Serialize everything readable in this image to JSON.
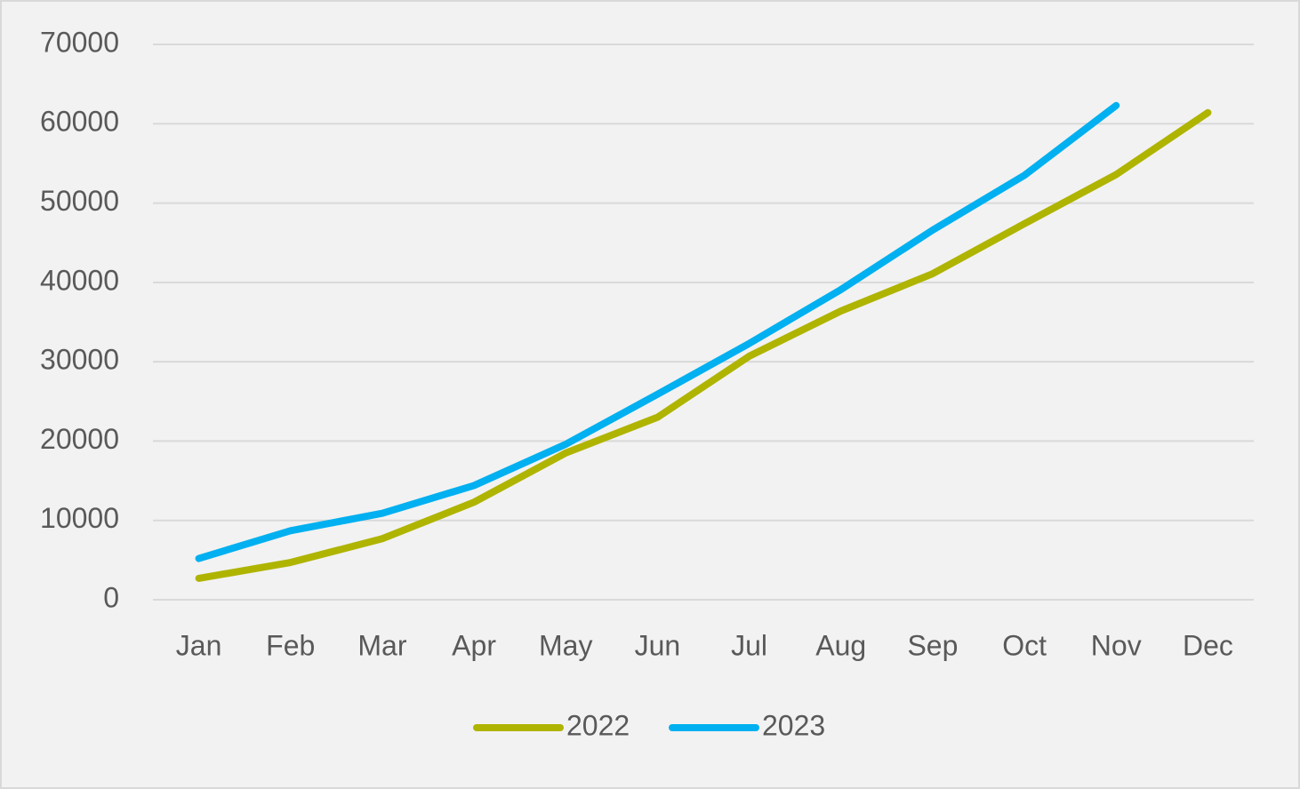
{
  "chart_data": {
    "type": "line",
    "categories": [
      "Jan",
      "Feb",
      "Mar",
      "Apr",
      "May",
      "Jun",
      "Jul",
      "Aug",
      "Sep",
      "Oct",
      "Nov",
      "Dec"
    ],
    "series": [
      {
        "name": "2022",
        "color": "#afb400",
        "values": [
          2700,
          4700,
          7700,
          12300,
          18500,
          23000,
          30700,
          36400,
          41100,
          47400,
          53600,
          61400
        ]
      },
      {
        "name": "2023",
        "color": "#00b0f0",
        "values": [
          5200,
          8700,
          10900,
          14400,
          19600,
          25900,
          32300,
          39100,
          46600,
          53500,
          62300,
          null
        ]
      }
    ],
    "ylim": [
      0,
      70000
    ],
    "yticks": [
      0,
      10000,
      20000,
      30000,
      40000,
      50000,
      60000,
      70000
    ],
    "grid": true,
    "legend": "bottom"
  }
}
